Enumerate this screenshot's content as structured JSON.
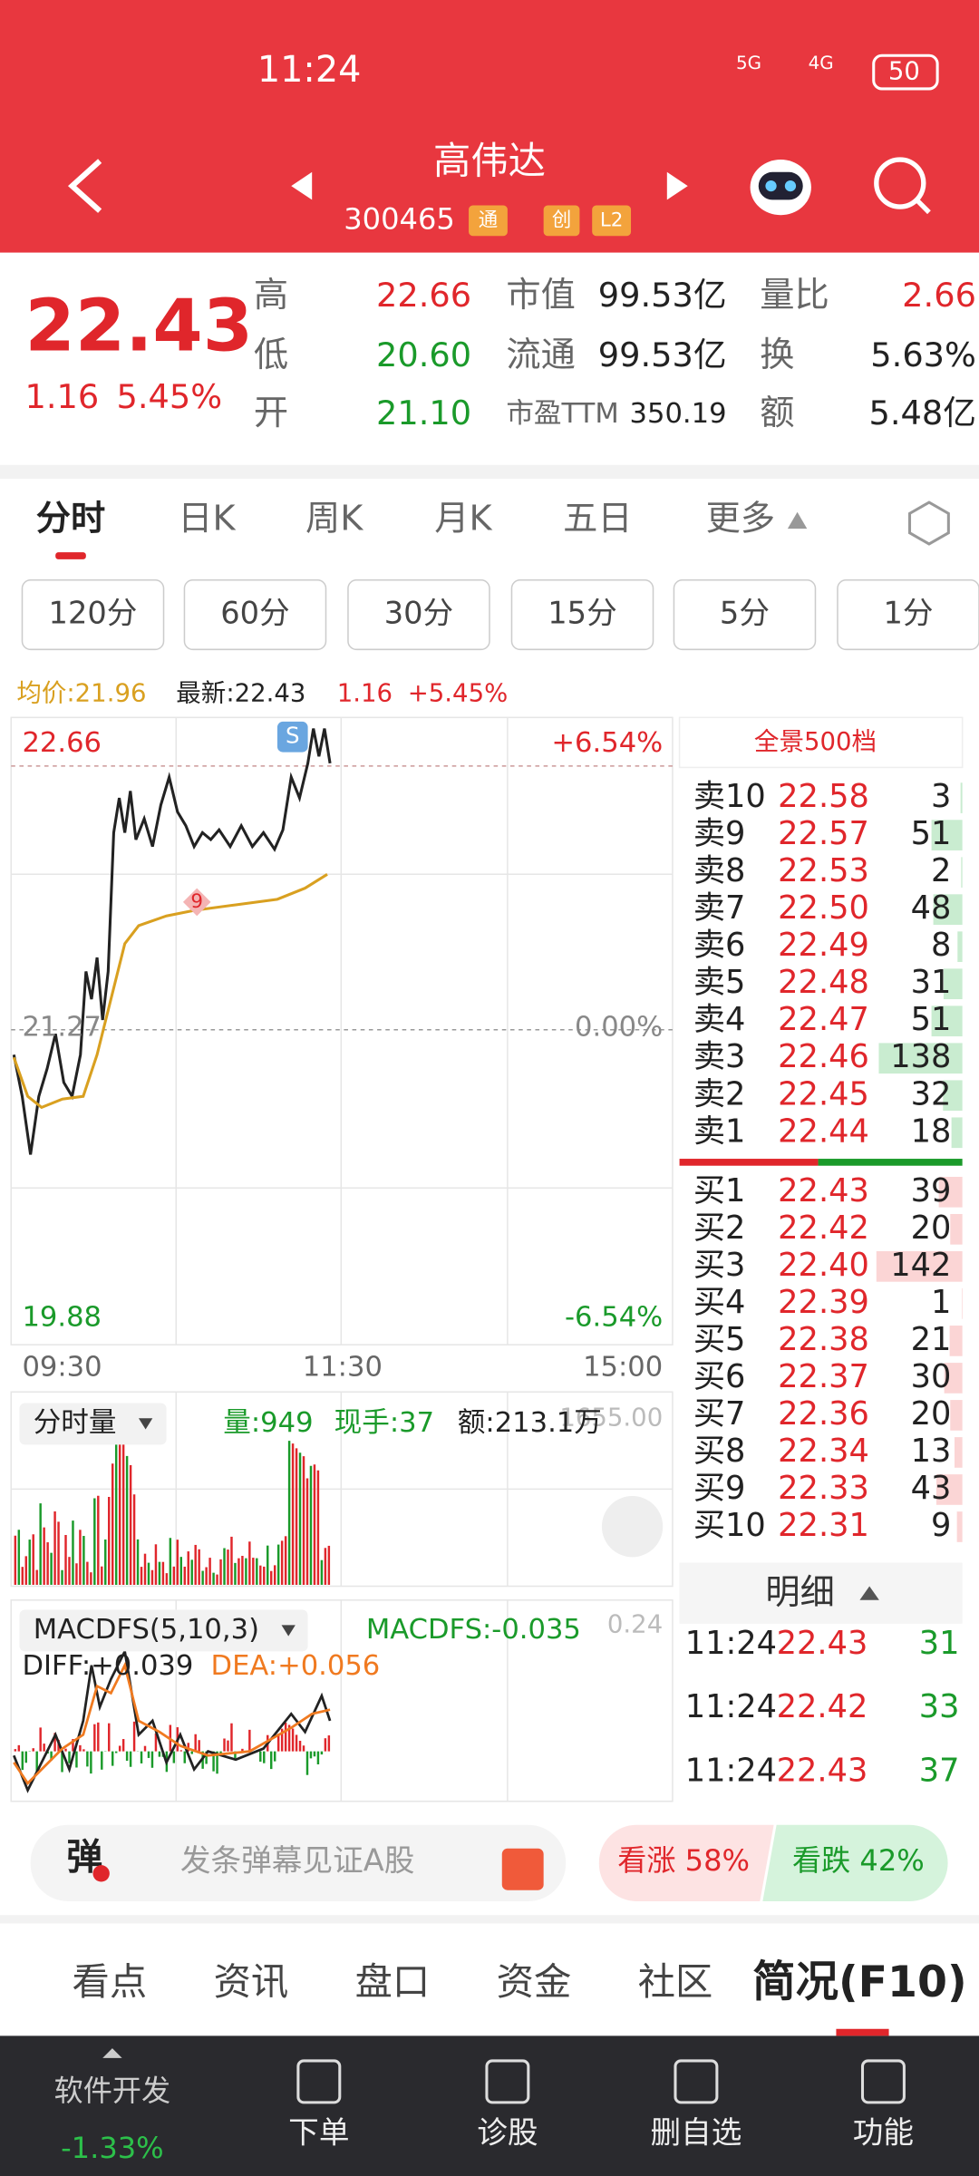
{
  "status_bar": {
    "time": "11:24",
    "network_1": "5G",
    "network_2": "4G",
    "battery": "50"
  },
  "header": {
    "title": "高伟达",
    "code": "300465",
    "badges": [
      "通",
      "创",
      "L2"
    ]
  },
  "quote": {
    "price": "22.43",
    "change": "1.16",
    "change_pct": "5.45%",
    "stats": [
      {
        "label": "高",
        "value": "22.66"
      },
      {
        "label": "低",
        "value": "20.60"
      },
      {
        "label": "开",
        "value": "21.10"
      },
      {
        "label": "市值",
        "value": "99.53亿"
      },
      {
        "label": "流通",
        "value": "99.53亿"
      },
      {
        "label": "市盈TTM",
        "value": "350.19"
      },
      {
        "label": "量比",
        "value": "2.66"
      },
      {
        "label": "换",
        "value": "5.63%"
      },
      {
        "label": "额",
        "value": "5.48亿"
      }
    ]
  },
  "tabs": [
    "分时",
    "日K",
    "周K",
    "月K",
    "五日",
    "更多"
  ],
  "periods": [
    "120分",
    "60分",
    "30分",
    "15分",
    "5分",
    "1分"
  ],
  "chart_info": {
    "avg": "均价:21.96",
    "latest": "最新:22.43",
    "change": "1.16",
    "change_pct": "+5.45%"
  },
  "price_chart": {
    "y_labels_left": [
      "22.66",
      "21.27",
      "19.88"
    ],
    "y_labels_right": [
      "+6.54%",
      "0.00%",
      "-6.54%"
    ],
    "time_labels": [
      "09:30",
      "11:30",
      "15:00"
    ],
    "markers": [
      "S",
      "9"
    ]
  },
  "volume_panel": {
    "selector": "分时量",
    "volume": "量:949",
    "last_hand": "现手:37",
    "amount": "额:213.1万",
    "max": "1655.00"
  },
  "macd_panel": {
    "selector": "MACDFS(5,10,3)",
    "macdfs": "MACDFS:-0.035",
    "max": "0.24",
    "diff": "DIFF:+0.039",
    "dea": "DEA:+0.056"
  },
  "order_book": {
    "title": "全景500档",
    "asks": [
      {
        "label": "卖10",
        "price": "22.58",
        "volume": 3
      },
      {
        "label": "卖9",
        "price": "22.57",
        "volume": 51
      },
      {
        "label": "卖8",
        "price": "22.53",
        "volume": 2
      },
      {
        "label": "卖7",
        "price": "22.50",
        "volume": 48
      },
      {
        "label": "卖6",
        "price": "22.49",
        "volume": 8
      },
      {
        "label": "卖5",
        "price": "22.48",
        "volume": 31
      },
      {
        "label": "卖4",
        "price": "22.47",
        "volume": 51
      },
      {
        "label": "卖3",
        "price": "22.46",
        "volume": 138
      },
      {
        "label": "卖2",
        "price": "22.45",
        "volume": 32
      },
      {
        "label": "卖1",
        "price": "22.44",
        "volume": 18
      }
    ],
    "bids": [
      {
        "label": "买1",
        "price": "22.43",
        "volume": 39
      },
      {
        "label": "买2",
        "price": "22.42",
        "volume": 20
      },
      {
        "label": "买3",
        "price": "22.40",
        "volume": 142
      },
      {
        "label": "买4",
        "price": "22.39",
        "volume": 1
      },
      {
        "label": "买5",
        "price": "22.38",
        "volume": 21
      },
      {
        "label": "买6",
        "price": "22.37",
        "volume": 30
      },
      {
        "label": "买7",
        "price": "22.36",
        "volume": 20
      },
      {
        "label": "买8",
        "price": "22.34",
        "volume": 13
      },
      {
        "label": "买9",
        "price": "22.33",
        "volume": 43
      },
      {
        "label": "买10",
        "price": "22.31",
        "volume": 9
      }
    ]
  },
  "trades": {
    "title": "明细",
    "rows": [
      {
        "time": "11:24",
        "price": "22.43",
        "volume": "31"
      },
      {
        "time": "11:24",
        "price": "22.42",
        "volume": "33"
      },
      {
        "time": "11:24",
        "price": "22.43",
        "volume": "37"
      }
    ]
  },
  "comment_bar": {
    "icon": "弹",
    "placeholder": "发条弹幕见证A股",
    "bullish": "看涨 58%",
    "bearish": "看跌 42%"
  },
  "info_tabs": [
    "看点",
    "资讯",
    "盘口",
    "资金",
    "社区",
    "简况(F10)"
  ],
  "bottom_nav": {
    "sector": "软件开发",
    "sector_change": "-1.33%",
    "items": [
      "下单",
      "诊股",
      "删自选",
      "功能"
    ]
  }
}
